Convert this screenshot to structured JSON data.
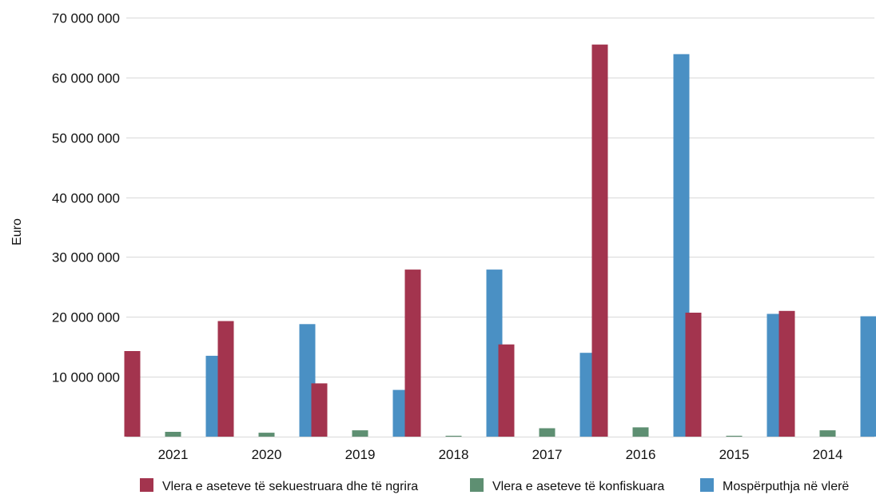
{
  "chart_data": {
    "type": "bar",
    "title": "",
    "xlabel": "",
    "ylabel": "Euro",
    "ylim": [
      0,
      70000000
    ],
    "y_ticks": [
      10000000,
      20000000,
      30000000,
      40000000,
      50000000,
      60000000,
      70000000
    ],
    "y_tick_labels": [
      "10 000 000",
      "20 000 000",
      "30 000 000",
      "40 000 000",
      "50 000 000",
      "60 000 000",
      "70 000 000"
    ],
    "grid": true,
    "legend_position": "bottom",
    "categories": [
      "2021",
      "2020",
      "2019",
      "2018",
      "2017",
      "2016",
      "2015",
      "2014"
    ],
    "series": [
      {
        "name": "Vlera e aseteve të sekuestruara dhe të ngrira",
        "color": "#a3344e",
        "values": [
          14300000,
          19300000,
          8900000,
          27900000,
          15400000,
          65500000,
          20700000,
          21000000
        ]
      },
      {
        "name": "Vlera e aseteve të konfiskuara",
        "color": "#5e8f72",
        "values": [
          800000,
          650000,
          1050000,
          150000,
          1400000,
          1550000,
          150000,
          1050000
        ]
      },
      {
        "name": "Mospërputhja në vlerë",
        "color": "#4a90c4",
        "values": [
          13500000,
          18800000,
          7800000,
          27900000,
          14000000,
          63900000,
          20500000,
          20100000
        ]
      }
    ]
  }
}
